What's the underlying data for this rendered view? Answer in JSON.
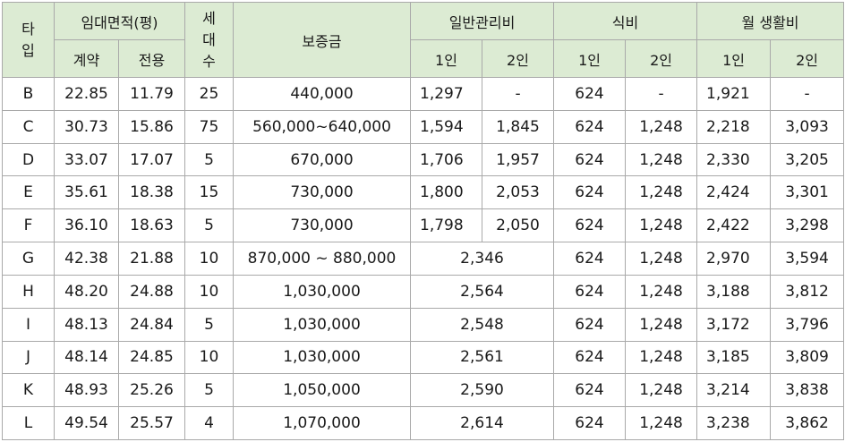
{
  "header": {
    "type": "타\n입",
    "area": "임대면적(평)",
    "area_contract": "계약",
    "area_exclusive": "전용",
    "households": "세\n대\n수",
    "deposit": "보증금",
    "management": "일반관리비",
    "meal": "식비",
    "living": "월 생활비",
    "one_person": "1인",
    "two_person": "2인"
  },
  "rows": [
    {
      "type": "B",
      "contract": "22.85",
      "exclusive": "11.79",
      "households": "25",
      "deposit": "440,000",
      "mgmt1": "1,297",
      "mgmt2": "-",
      "meal1": "624",
      "meal2": "-",
      "living1": "1,921",
      "living2": "-"
    },
    {
      "type": "C",
      "contract": "30.73",
      "exclusive": "15.86",
      "households": "75",
      "deposit": "560,000~640,000",
      "mgmt1": "1,594",
      "mgmt2": "1,845",
      "meal1": "624",
      "meal2": "1,248",
      "living1": "2,218",
      "living2": "3,093"
    },
    {
      "type": "D",
      "contract": "33.07",
      "exclusive": "17.07",
      "households": "5",
      "deposit": "670,000",
      "mgmt1": "1,706",
      "mgmt2": "1,957",
      "meal1": "624",
      "meal2": "1,248",
      "living1": "2,330",
      "living2": "3,205"
    },
    {
      "type": "E",
      "contract": "35.61",
      "exclusive": "18.38",
      "households": "15",
      "deposit": "730,000",
      "mgmt1": "1,800",
      "mgmt2": "2,053",
      "meal1": "624",
      "meal2": "1,248",
      "living1": "2,424",
      "living2": "3,301"
    },
    {
      "type": "F",
      "contract": "36.10",
      "exclusive": "18.63",
      "households": "5",
      "deposit": "730,000",
      "mgmt1": "1,798",
      "mgmt2": "2,050",
      "meal1": "624",
      "meal2": "1,248",
      "living1": "2,422",
      "living2": "3,298"
    },
    {
      "type": "G",
      "contract": "42.38",
      "exclusive": "21.88",
      "households": "10",
      "deposit": "870,000 ~ 880,000",
      "mgmt": "2,346",
      "meal1": "624",
      "meal2": "1,248",
      "living1": "2,970",
      "living2": "3,594"
    },
    {
      "type": "H",
      "contract": "48.20",
      "exclusive": "24.88",
      "households": "10",
      "deposit": "1,030,000",
      "mgmt": "2,564",
      "meal1": "624",
      "meal2": "1,248",
      "living1": "3,188",
      "living2": "3,812"
    },
    {
      "type": "I",
      "contract": "48.13",
      "exclusive": "24.84",
      "households": "5",
      "deposit": "1,030,000",
      "mgmt": "2,548",
      "meal1": "624",
      "meal2": "1,248",
      "living1": "3,172",
      "living2": "3,796"
    },
    {
      "type": "J",
      "contract": "48.14",
      "exclusive": "24.85",
      "households": "10",
      "deposit": "1,030,000",
      "mgmt": "2,561",
      "meal1": "624",
      "meal2": "1,248",
      "living1": "3,185",
      "living2": "3,809"
    },
    {
      "type": "K",
      "contract": "48.93",
      "exclusive": "25.26",
      "households": "5",
      "deposit": "1,050,000",
      "mgmt": "2,590",
      "meal1": "624",
      "meal2": "1,248",
      "living1": "3,214",
      "living2": "3,838"
    },
    {
      "type": "L",
      "contract": "49.54",
      "exclusive": "25.57",
      "households": "4",
      "deposit": "1,070,000",
      "mgmt": "2,614",
      "meal1": "624",
      "meal2": "1,248",
      "living1": "3,238",
      "living2": "3,862"
    }
  ],
  "colors": {
    "header_bg": "#dcebd3",
    "border": "#a9a9a9"
  }
}
